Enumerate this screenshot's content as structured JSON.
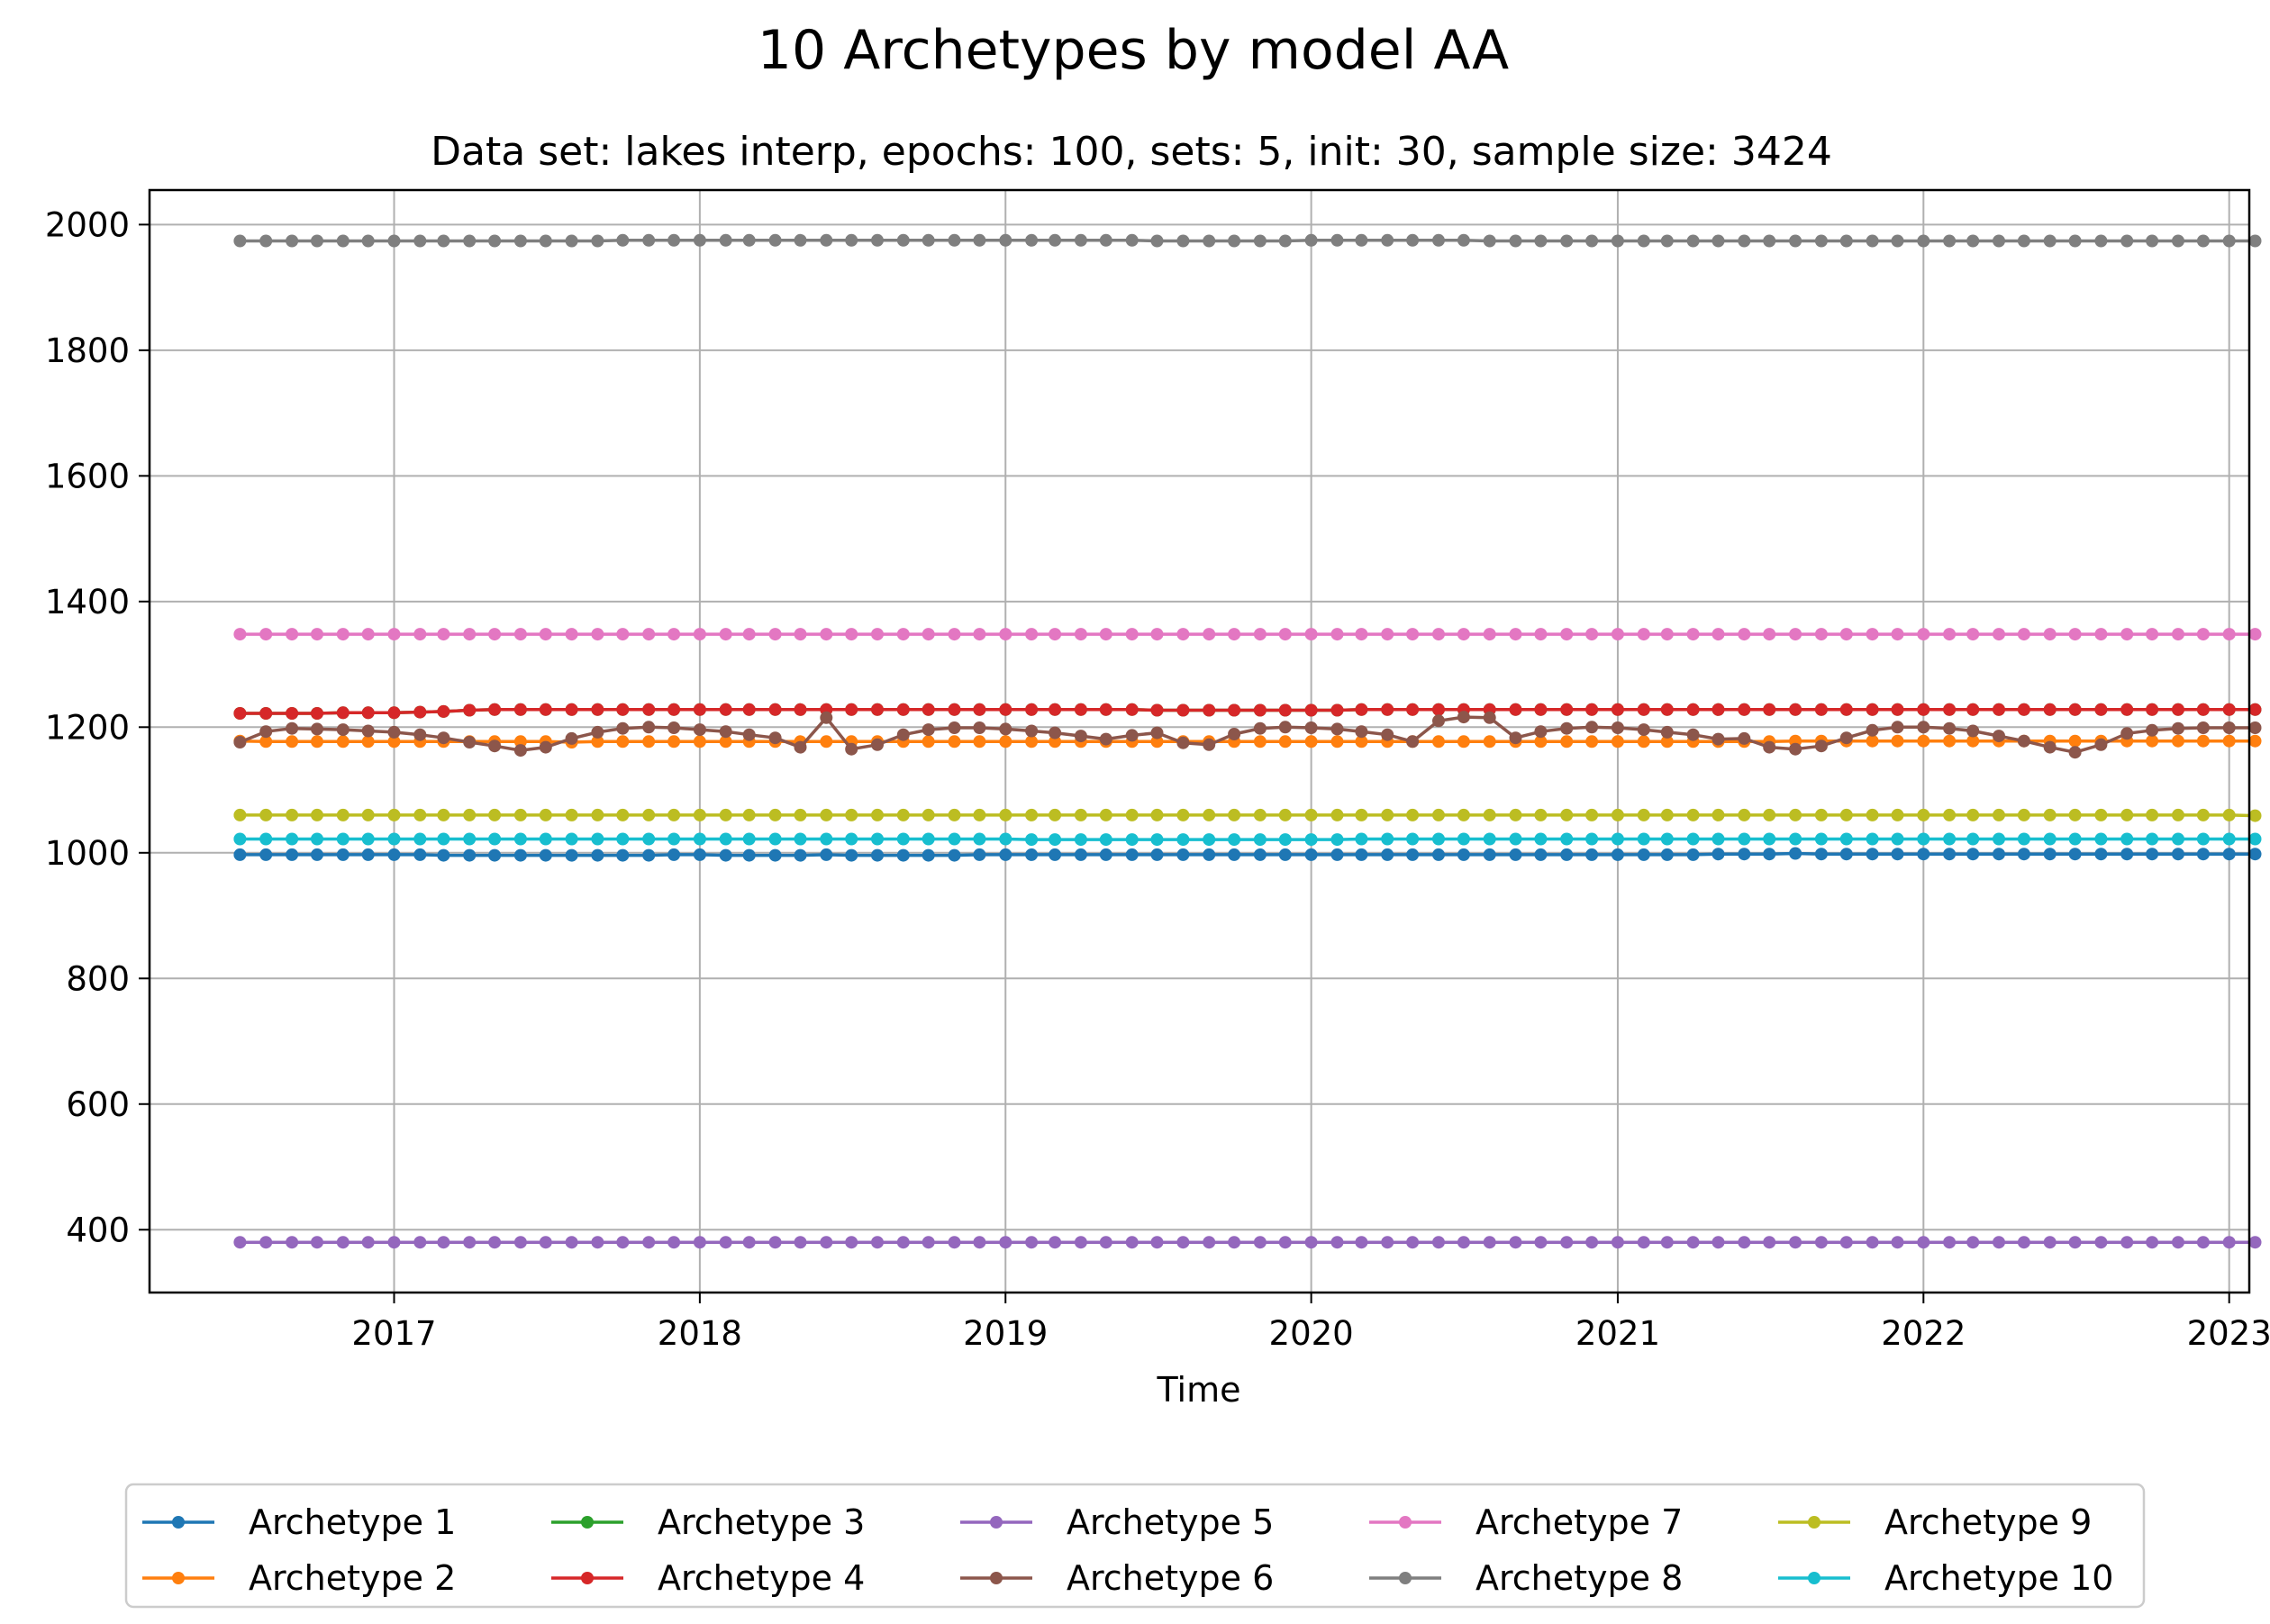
{
  "chart_data": {
    "type": "line",
    "title": "10 Archetypes by model AA",
    "subtitle": "Data set: lakes interp, epochs: 100, sets: 5, init: 30, sample size: 3424",
    "xlabel": "Time",
    "ylabel": "",
    "x_start": "2016-07",
    "x_end": "2022-12",
    "x_frequency": "monthly",
    "xlim": [
      "2016-03-15",
      "2023-01-25"
    ],
    "ylim": [
      300,
      2055
    ],
    "xticks": [
      "2017",
      "2018",
      "2019",
      "2020",
      "2021",
      "2022",
      "2023"
    ],
    "yticks": [
      400,
      600,
      800,
      1000,
      1200,
      1400,
      1600,
      1800,
      2000
    ],
    "grid": true,
    "legend_position": "bottom-center",
    "legend_columns": 5,
    "marker": "circle",
    "series": [
      {
        "name": "Archetype 1",
        "color": "#1f77b4",
        "values": [
          997,
          997,
          997,
          997,
          997,
          997,
          997,
          997,
          996,
          996,
          996,
          996,
          996,
          996,
          996,
          996,
          996,
          997,
          997,
          996,
          996,
          996,
          996,
          997,
          996,
          996,
          996,
          996,
          996,
          997,
          997,
          997,
          997,
          997,
          997,
          997,
          997,
          997,
          997,
          997,
          997,
          997,
          997,
          997,
          997,
          997,
          997,
          997,
          997,
          997,
          997,
          997,
          997,
          997,
          997,
          997,
          997,
          997,
          998,
          998,
          998,
          999,
          998,
          998,
          998,
          998,
          998,
          998,
          998,
          998,
          998,
          998,
          998,
          998,
          998,
          998,
          998,
          998,
          998,
          998
        ]
      },
      {
        "name": "Archetype 2",
        "color": "#ff7f0e",
        "values": [
          1178,
          1177,
          1177,
          1177,
          1177,
          1177,
          1177,
          1177,
          1177,
          1177,
          1177,
          1177,
          1177,
          1176,
          1177,
          1177,
          1177,
          1177,
          1177,
          1177,
          1177,
          1177,
          1177,
          1177,
          1177,
          1177,
          1177,
          1177,
          1177,
          1177,
          1177,
          1177,
          1177,
          1177,
          1177,
          1177,
          1177,
          1177,
          1177,
          1177,
          1177,
          1177,
          1177,
          1177,
          1177,
          1177,
          1177,
          1177,
          1177,
          1177,
          1177,
          1177,
          1177,
          1177,
          1177,
          1177,
          1177,
          1177,
          1177,
          1177,
          1177,
          1178,
          1178,
          1178,
          1178,
          1178,
          1178,
          1178,
          1178,
          1178,
          1178,
          1178,
          1178,
          1178,
          1178,
          1178,
          1178,
          1178,
          1178,
          1178
        ]
      },
      {
        "name": "Archetype 3",
        "color": "#2ca02c",
        "values": [
          1222,
          1222,
          1222,
          1222,
          1223,
          1223,
          1223,
          1224,
          1225,
          1227,
          1228,
          1228,
          1228,
          1228,
          1228,
          1228,
          1228,
          1228,
          1228,
          1228,
          1228,
          1228,
          1228,
          1228,
          1228,
          1228,
          1228,
          1228,
          1228,
          1228,
          1228,
          1228,
          1228,
          1228,
          1228,
          1228,
          1227,
          1227,
          1227,
          1227,
          1227,
          1227,
          1227,
          1227,
          1228,
          1228,
          1228,
          1228,
          1228,
          1228,
          1228,
          1228,
          1228,
          1228,
          1228,
          1228,
          1228,
          1228,
          1228,
          1228,
          1228,
          1228,
          1228,
          1228,
          1228,
          1228,
          1228,
          1228,
          1228,
          1228,
          1228,
          1228,
          1228,
          1228,
          1228,
          1228,
          1228,
          1228,
          1228,
          1228
        ]
      },
      {
        "name": "Archetype 4",
        "color": "#d62728",
        "values": [
          1222,
          1222,
          1222,
          1222,
          1223,
          1223,
          1223,
          1224,
          1225,
          1227,
          1228,
          1228,
          1228,
          1228,
          1228,
          1228,
          1228,
          1228,
          1228,
          1228,
          1228,
          1228,
          1228,
          1228,
          1228,
          1228,
          1228,
          1228,
          1228,
          1228,
          1228,
          1228,
          1228,
          1228,
          1228,
          1228,
          1227,
          1227,
          1227,
          1227,
          1227,
          1227,
          1227,
          1227,
          1228,
          1228,
          1228,
          1228,
          1228,
          1228,
          1228,
          1228,
          1228,
          1228,
          1228,
          1228,
          1228,
          1228,
          1228,
          1228,
          1228,
          1228,
          1228,
          1228,
          1228,
          1228,
          1228,
          1228,
          1228,
          1228,
          1228,
          1228,
          1228,
          1228,
          1228,
          1228,
          1228,
          1228,
          1228,
          1228
        ]
      },
      {
        "name": "Archetype 5",
        "color": "#9467bd",
        "values": [
          380,
          380,
          380,
          380,
          380,
          380,
          380,
          380,
          380,
          380,
          380,
          380,
          380,
          380,
          380,
          380,
          380,
          380,
          380,
          380,
          380,
          380,
          380,
          380,
          380,
          380,
          380,
          380,
          380,
          380,
          380,
          380,
          380,
          380,
          380,
          380,
          380,
          380,
          380,
          380,
          380,
          380,
          380,
          380,
          380,
          380,
          380,
          380,
          380,
          380,
          380,
          380,
          380,
          380,
          380,
          380,
          380,
          380,
          380,
          380,
          380,
          380,
          380,
          380,
          380,
          380,
          380,
          380,
          380,
          380,
          380,
          380,
          380,
          380,
          380,
          380,
          380,
          380,
          380,
          380
        ]
      },
      {
        "name": "Archetype 6",
        "color": "#8c564b",
        "values": [
          1176,
          1193,
          1198,
          1197,
          1196,
          1194,
          1192,
          1188,
          1183,
          1176,
          1170,
          1163,
          1168,
          1182,
          1192,
          1198,
          1200,
          1199,
          1196,
          1193,
          1188,
          1183,
          1168,
          1215,
          1165,
          1172,
          1188,
          1196,
          1199,
          1199,
          1197,
          1194,
          1191,
          1186,
          1181,
          1187,
          1191,
          1175,
          1172,
          1189,
          1198,
          1200,
          1199,
          1197,
          1193,
          1188,
          1177,
          1210,
          1216,
          1215,
          1183,
          1193,
          1198,
          1200,
          1199,
          1196,
          1192,
          1188,
          1181,
          1182,
          1168,
          1165,
          1170,
          1183,
          1195,
          1200,
          1200,
          1198,
          1194,
          1186,
          1178,
          1168,
          1160,
          1172,
          1190,
          1195,
          1198,
          1199,
          1199,
          1199
        ]
      },
      {
        "name": "Archetype 7",
        "color": "#e377c2",
        "values": [
          1348,
          1348,
          1348,
          1348,
          1348,
          1348,
          1348,
          1348,
          1348,
          1348,
          1348,
          1348,
          1348,
          1348,
          1348,
          1348,
          1348,
          1348,
          1348,
          1348,
          1348,
          1348,
          1348,
          1348,
          1348,
          1348,
          1348,
          1348,
          1348,
          1348,
          1348,
          1348,
          1348,
          1348,
          1348,
          1348,
          1348,
          1348,
          1348,
          1348,
          1348,
          1348,
          1348,
          1348,
          1348,
          1348,
          1348,
          1348,
          1348,
          1348,
          1348,
          1348,
          1348,
          1348,
          1348,
          1348,
          1348,
          1348,
          1348,
          1348,
          1348,
          1348,
          1348,
          1348,
          1348,
          1348,
          1348,
          1348,
          1348,
          1348,
          1348,
          1348,
          1348,
          1348,
          1348,
          1348,
          1348,
          1348,
          1348,
          1348
        ]
      },
      {
        "name": "Archetype 8",
        "color": "#7f7f7f",
        "values": [
          1974,
          1974,
          1974,
          1974,
          1974,
          1974,
          1974,
          1974,
          1974,
          1974,
          1974,
          1974,
          1974,
          1974,
          1974,
          1975,
          1975,
          1975,
          1975,
          1975,
          1975,
          1975,
          1975,
          1975,
          1975,
          1975,
          1975,
          1975,
          1975,
          1975,
          1975,
          1975,
          1975,
          1975,
          1975,
          1975,
          1974,
          1974,
          1974,
          1974,
          1974,
          1974,
          1975,
          1975,
          1975,
          1975,
          1975,
          1975,
          1975,
          1974,
          1974,
          1974,
          1974,
          1974,
          1974,
          1974,
          1974,
          1974,
          1974,
          1974,
          1974,
          1974,
          1974,
          1974,
          1974,
          1974,
          1974,
          1974,
          1974,
          1974,
          1974,
          1974,
          1974,
          1974,
          1974,
          1974,
          1974,
          1974,
          1974,
          1974
        ]
      },
      {
        "name": "Archetype 9",
        "color": "#bcbd22",
        "values": [
          1060,
          1060,
          1060,
          1060,
          1060,
          1060,
          1060,
          1060,
          1060,
          1060,
          1060,
          1060,
          1060,
          1060,
          1060,
          1060,
          1060,
          1060,
          1060,
          1060,
          1060,
          1060,
          1060,
          1060,
          1060,
          1060,
          1060,
          1060,
          1060,
          1060,
          1060,
          1060,
          1060,
          1060,
          1060,
          1060,
          1060,
          1060,
          1060,
          1060,
          1060,
          1060,
          1060,
          1060,
          1060,
          1060,
          1060,
          1060,
          1060,
          1060,
          1060,
          1060,
          1060,
          1060,
          1060,
          1060,
          1060,
          1060,
          1060,
          1060,
          1060,
          1060,
          1060,
          1060,
          1060,
          1060,
          1060,
          1060,
          1060,
          1060,
          1060,
          1060,
          1060,
          1060,
          1060,
          1060,
          1060,
          1060,
          1060,
          1059
        ]
      },
      {
        "name": "Archetype 10",
        "color": "#17becf",
        "values": [
          1022,
          1022,
          1022,
          1022,
          1022,
          1022,
          1022,
          1022,
          1022,
          1022,
          1022,
          1022,
          1022,
          1022,
          1022,
          1022,
          1022,
          1022,
          1022,
          1022,
          1022,
          1022,
          1022,
          1022,
          1022,
          1022,
          1022,
          1022,
          1022,
          1022,
          1022,
          1021,
          1021,
          1021,
          1021,
          1021,
          1021,
          1021,
          1021,
          1021,
          1021,
          1021,
          1021,
          1021,
          1022,
          1022,
          1022,
          1022,
          1022,
          1022,
          1022,
          1022,
          1022,
          1022,
          1022,
          1022,
          1022,
          1022,
          1022,
          1022,
          1022,
          1022,
          1022,
          1022,
          1022,
          1022,
          1022,
          1022,
          1022,
          1022,
          1022,
          1022,
          1022,
          1022,
          1022,
          1022,
          1022,
          1022,
          1022,
          1022
        ]
      }
    ]
  }
}
